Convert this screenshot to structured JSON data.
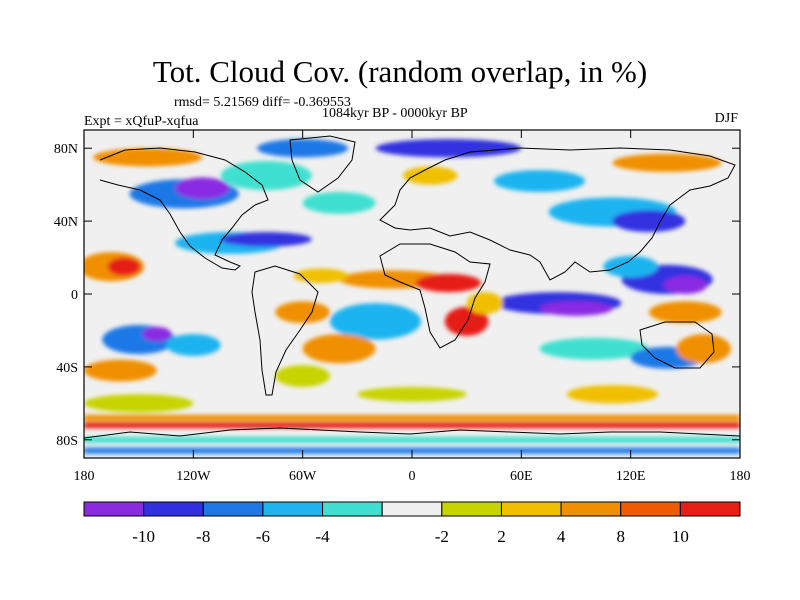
{
  "title": "Tot. Cloud Cov. (random overlap, in %)",
  "stats": "rmsd= 5.21569 diff= -0.369553",
  "period": "1084kyr BP - 0000kyr BP",
  "experiment": "Expt = xQfuP-xqfua",
  "season": "DJF",
  "map": {
    "lon_range": [
      -180,
      180
    ],
    "lat_range": [
      -90,
      90
    ],
    "x_ticks": [
      {
        "value": -180,
        "label": "180"
      },
      {
        "value": -120,
        "label": "120W"
      },
      {
        "value": -60,
        "label": "60W"
      },
      {
        "value": 0,
        "label": "0"
      },
      {
        "value": 60,
        "label": "60E"
      },
      {
        "value": 120,
        "label": "120E"
      },
      {
        "value": 180,
        "label": "180"
      }
    ],
    "y_ticks": [
      {
        "value": 80,
        "label": "80N"
      },
      {
        "value": 40,
        "label": "40N"
      },
      {
        "value": 0,
        "label": "0"
      },
      {
        "value": -40,
        "label": "40S"
      },
      {
        "value": -80,
        "label": "80S"
      }
    ]
  },
  "colorbar": {
    "colors": [
      "#8a2be2",
      "#3030e0",
      "#1e78e6",
      "#1eb4f0",
      "#40e0d0",
      "#f0f0f0",
      "#c8d400",
      "#f0c000",
      "#f09000",
      "#f05a00",
      "#e61e14"
    ],
    "labels": [
      "-10",
      "-8",
      "-6",
      "-4",
      "-2",
      "2",
      "4",
      "8",
      "10"
    ]
  },
  "fields": {
    "background": "#f0f0f0",
    "blobs": [
      {
        "lon": -165,
        "lat": 15,
        "rx": 18,
        "ry": 8,
        "color": "#f09000"
      },
      {
        "lon": -158,
        "lat": 15,
        "rx": 9,
        "ry": 5,
        "color": "#e61e14"
      },
      {
        "lon": -150,
        "lat": -25,
        "rx": 20,
        "ry": 8,
        "color": "#1e78e6"
      },
      {
        "lon": -140,
        "lat": -22,
        "rx": 8,
        "ry": 4,
        "color": "#8a2be2"
      },
      {
        "lon": -120,
        "lat": -28,
        "rx": 15,
        "ry": 6,
        "color": "#1eb4f0"
      },
      {
        "lon": -160,
        "lat": -42,
        "rx": 20,
        "ry": 6,
        "color": "#f09000"
      },
      {
        "lon": -100,
        "lat": 28,
        "rx": 30,
        "ry": 6,
        "color": "#1eb4f0"
      },
      {
        "lon": -80,
        "lat": 30,
        "rx": 25,
        "ry": 4,
        "color": "#3030e0"
      },
      {
        "lon": -125,
        "lat": 55,
        "rx": 30,
        "ry": 8,
        "color": "#1e78e6"
      },
      {
        "lon": -115,
        "lat": 58,
        "rx": 15,
        "ry": 6,
        "color": "#8a2be2"
      },
      {
        "lon": -80,
        "lat": 65,
        "rx": 25,
        "ry": 8,
        "color": "#40e0d0"
      },
      {
        "lon": -145,
        "lat": 75,
        "rx": 30,
        "ry": 5,
        "color": "#f09000"
      },
      {
        "lon": -60,
        "lat": 80,
        "rx": 25,
        "ry": 5,
        "color": "#1e78e6"
      },
      {
        "lon": 20,
        "lat": 80,
        "rx": 40,
        "ry": 5,
        "color": "#3030e0"
      },
      {
        "lon": 10,
        "lat": 65,
        "rx": 15,
        "ry": 5,
        "color": "#f0c000"
      },
      {
        "lon": 70,
        "lat": 62,
        "rx": 25,
        "ry": 6,
        "color": "#1eb4f0"
      },
      {
        "lon": 140,
        "lat": 72,
        "rx": 30,
        "ry": 5,
        "color": "#f09000"
      },
      {
        "lon": 110,
        "lat": 45,
        "rx": 35,
        "ry": 8,
        "color": "#1eb4f0"
      },
      {
        "lon": 130,
        "lat": 40,
        "rx": 20,
        "ry": 6,
        "color": "#3030e0"
      },
      {
        "lon": -40,
        "lat": 50,
        "rx": 20,
        "ry": 6,
        "color": "#40e0d0"
      },
      {
        "lon": -10,
        "lat": 8,
        "rx": 30,
        "ry": 5,
        "color": "#f09000"
      },
      {
        "lon": 20,
        "lat": 6,
        "rx": 18,
        "ry": 5,
        "color": "#e61e14"
      },
      {
        "lon": -50,
        "lat": 10,
        "rx": 15,
        "ry": 4,
        "color": "#f0c000"
      },
      {
        "lon": 80,
        "lat": -5,
        "rx": 35,
        "ry": 6,
        "color": "#3030e0"
      },
      {
        "lon": 90,
        "lat": -8,
        "rx": 20,
        "ry": 4,
        "color": "#8a2be2"
      },
      {
        "lon": 140,
        "lat": 8,
        "rx": 25,
        "ry": 8,
        "color": "#3030e0"
      },
      {
        "lon": 150,
        "lat": 5,
        "rx": 12,
        "ry": 5,
        "color": "#8a2be2"
      },
      {
        "lon": 120,
        "lat": 15,
        "rx": 15,
        "ry": 6,
        "color": "#1eb4f0"
      },
      {
        "lon": 150,
        "lat": -10,
        "rx": 20,
        "ry": 6,
        "color": "#f09000"
      },
      {
        "lon": 30,
        "lat": -15,
        "rx": 12,
        "ry": 8,
        "color": "#e61e14"
      },
      {
        "lon": 40,
        "lat": -5,
        "rx": 10,
        "ry": 6,
        "color": "#f0c000"
      },
      {
        "lon": -60,
        "lat": -10,
        "rx": 15,
        "ry": 6,
        "color": "#f09000"
      },
      {
        "lon": -20,
        "lat": -15,
        "rx": 25,
        "ry": 10,
        "color": "#1eb4f0"
      },
      {
        "lon": -40,
        "lat": -30,
        "rx": 20,
        "ry": 8,
        "color": "#f09000"
      },
      {
        "lon": 100,
        "lat": -30,
        "rx": 30,
        "ry": 6,
        "color": "#40e0d0"
      },
      {
        "lon": 140,
        "lat": -35,
        "rx": 20,
        "ry": 6,
        "color": "#1e78e6"
      },
      {
        "lon": 160,
        "lat": -30,
        "rx": 15,
        "ry": 8,
        "color": "#f09000"
      },
      {
        "lon": -150,
        "lat": -60,
        "rx": 30,
        "ry": 5,
        "color": "#c8d400"
      },
      {
        "lon": 0,
        "lat": -55,
        "rx": 30,
        "ry": 4,
        "color": "#c8d400"
      },
      {
        "lon": 110,
        "lat": -55,
        "rx": 25,
        "ry": 5,
        "color": "#f0c000"
      },
      {
        "lon": -60,
        "lat": -45,
        "rx": 15,
        "ry": 6,
        "color": "#c8d400"
      }
    ],
    "bands": [
      {
        "lat": -68,
        "color": "#f09000"
      },
      {
        "lat": -72,
        "color": "#e61e14"
      },
      {
        "lat": -80,
        "color": "#40e0d0"
      },
      {
        "lat": -86,
        "color": "#1e78e6"
      }
    ]
  }
}
